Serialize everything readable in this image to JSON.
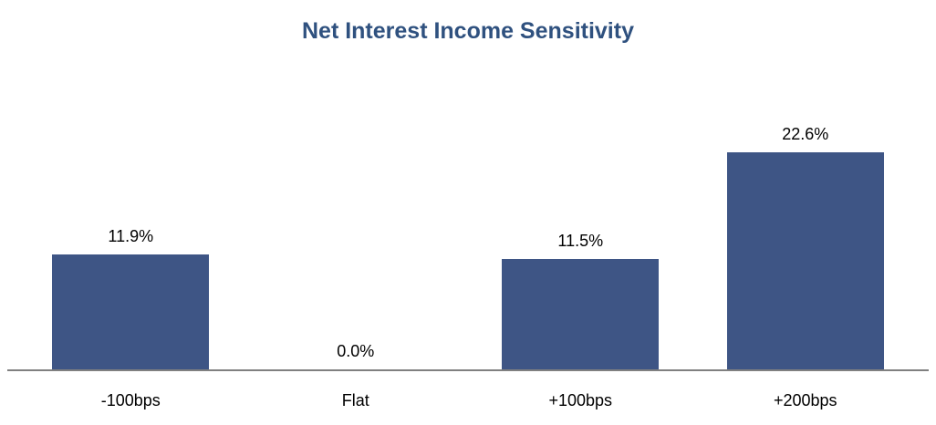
{
  "chart_data": {
    "type": "bar",
    "title": "Net Interest Income Sensitivity",
    "categories": [
      "-100bps",
      "Flat",
      "+100bps",
      "+200bps"
    ],
    "values": [
      11.9,
      0.0,
      11.5,
      22.6
    ],
    "value_labels": [
      "11.9%",
      "0.0%",
      "11.5%",
      "22.6%"
    ],
    "xlabel": "",
    "ylabel": "",
    "ylim": [
      0,
      25
    ],
    "grid": false,
    "legend": false,
    "colors": {
      "bar_fill": "#3E5585",
      "title_text": "#2F517F",
      "axis_line": "#808080",
      "label_text": "#000000",
      "background": "#FFFFFF"
    }
  }
}
